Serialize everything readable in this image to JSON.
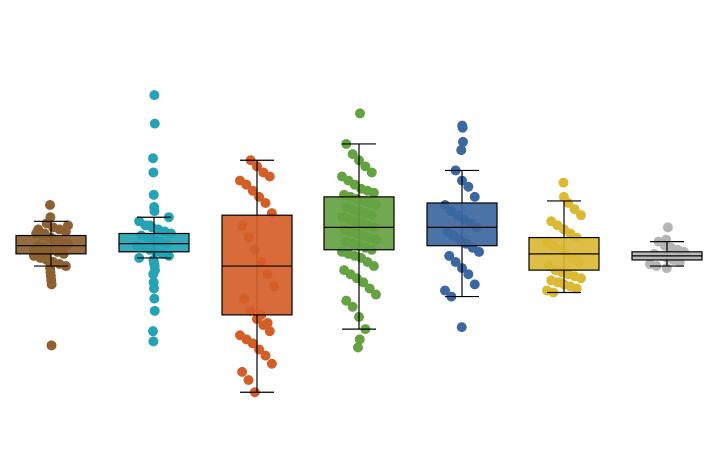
{
  "chart_data": {
    "type": "box",
    "title": "",
    "xlabel": "",
    "ylabel": "",
    "ylim": [
      0,
      100
    ],
    "series": [
      {
        "color": "#8c6030",
        "box": {
          "min": 42.0,
          "q1": 45.0,
          "median": 47.0,
          "q3": 49.5,
          "max": 53.0
        },
        "outliers": [
          22.5
        ],
        "points": [
          57.0,
          54.0,
          52.5,
          51.5,
          51.0,
          50.5,
          50.0,
          49.5,
          49.0,
          48.5,
          48.0,
          47.5,
          47.0,
          46.5,
          46.0,
          45.5,
          45.0,
          44.5,
          44.0,
          43.5,
          43.0,
          42.5,
          42.0,
          41.5,
          40.5,
          39.5,
          38.5,
          37.5,
          52.0,
          51.0,
          50.0,
          49.0,
          48.0,
          47.0,
          46.0,
          45.0,
          44.0,
          43.0,
          22.5
        ]
      },
      {
        "color": "#24a3b5",
        "box": {
          "min": 44.0,
          "q1": 45.5,
          "median": 47.5,
          "q3": 50.0,
          "max": 54.0
        },
        "outliers": [
          84.0,
          77.0,
          68.5,
          65.0,
          59.5,
          26.0,
          23.5
        ],
        "points": [
          84.0,
          77.0,
          68.5,
          65.0,
          59.5,
          56.5,
          55.5,
          54.0,
          53.0,
          52.0,
          51.5,
          51.0,
          50.5,
          50.0,
          49.5,
          49.0,
          48.5,
          48.0,
          47.5,
          47.0,
          46.5,
          46.0,
          45.5,
          45.0,
          44.5,
          44.0,
          43.5,
          43.0,
          42.5,
          42.0,
          41.0,
          40.0,
          38.0,
          36.5,
          34.0,
          31.0,
          26.0,
          23.5,
          52.0,
          48.0
        ]
      },
      {
        "color": "#d45e28",
        "box": {
          "min": 11.0,
          "q1": 30.0,
          "median": 42.0,
          "q3": 54.5,
          "max": 68.0
        },
        "outliers": [],
        "points": [
          68.0,
          66.5,
          65.0,
          64.0,
          63.0,
          62.0,
          60.5,
          59.0,
          57.5,
          55.0,
          52.0,
          49.0,
          46.0,
          43.0,
          40.0,
          37.0,
          34.0,
          31.0,
          29.0,
          27.5,
          26.0,
          25.0,
          24.0,
          23.0,
          21.5,
          20.0,
          18.0,
          16.0,
          14.0,
          11.0,
          30.0,
          28.0
        ]
      },
      {
        "color": "#65a242",
        "box": {
          "min": 26.5,
          "q1": 46.0,
          "median": 51.5,
          "q3": 59.0,
          "max": 72.0
        },
        "outliers": [],
        "points": [
          79.5,
          72.0,
          69.5,
          68.0,
          66.5,
          65.0,
          64.0,
          63.0,
          62.0,
          61.0,
          60.5,
          60.0,
          59.5,
          59.0,
          58.5,
          58.0,
          57.5,
          57.0,
          56.5,
          56.0,
          55.5,
          55.0,
          54.5,
          54.0,
          53.5,
          53.0,
          52.5,
          52.0,
          51.5,
          51.0,
          50.5,
          50.0,
          49.5,
          49.0,
          48.5,
          48.0,
          47.5,
          47.0,
          46.5,
          46.0,
          45.5,
          45.0,
          44.5,
          44.0,
          43.0,
          42.0,
          41.0,
          40.0,
          39.0,
          38.0,
          36.5,
          35.0,
          33.5,
          32.0,
          29.5,
          26.5,
          24.0,
          22.0
        ]
      },
      {
        "color": "#3c67a0",
        "box": {
          "min": 34.5,
          "q1": 47.0,
          "median": 51.5,
          "q3": 57.5,
          "max": 65.5
        },
        "outliers": [
          27.0
        ],
        "points": [
          76.5,
          76.0,
          72.5,
          70.5,
          65.5,
          63.0,
          61.5,
          59.0,
          57.0,
          55.5,
          54.5,
          53.5,
          52.5,
          51.5,
          50.5,
          49.5,
          48.5,
          47.5,
          46.5,
          45.5,
          44.5,
          43.0,
          41.5,
          40.0,
          37.5,
          36.0,
          34.5,
          27.0
        ]
      },
      {
        "color": "#dbb935",
        "box": {
          "min": 35.5,
          "q1": 41.0,
          "median": 45.0,
          "q3": 49.0,
          "max": 58.0
        },
        "outliers": [],
        "points": [
          62.5,
          59.0,
          57.5,
          56.0,
          54.5,
          53.0,
          52.0,
          51.0,
          50.0,
          49.0,
          48.0,
          47.0,
          46.0,
          45.0,
          44.0,
          43.0,
          42.0,
          41.0,
          40.5,
          40.0,
          39.5,
          39.0,
          38.5,
          38.0,
          37.5,
          37.0,
          36.5,
          36.0,
          35.5,
          38.0
        ]
      },
      {
        "color": "#b5b5b5",
        "box": {
          "min": 42.0,
          "q1": 43.5,
          "median": 44.5,
          "q3": 45.5,
          "max": 48.0
        },
        "outliers": [],
        "points": [
          51.5,
          48.5,
          48.0,
          47.0,
          46.5,
          46.0,
          45.5,
          45.0,
          44.5,
          44.0,
          43.5,
          43.0,
          42.5,
          42.0,
          41.5
        ]
      }
    ]
  }
}
